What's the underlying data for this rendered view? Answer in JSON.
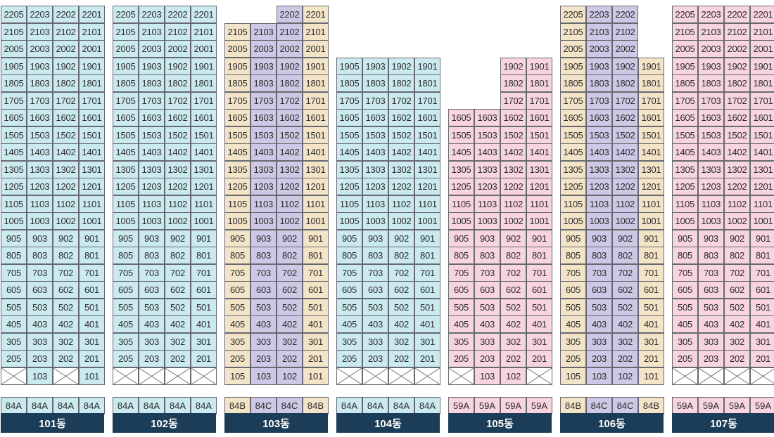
{
  "colors": {
    "84A": "#cbeaf0",
    "84B": "#f3e4c8",
    "84C": "#cec8e6",
    "59A": "#f7d4df",
    "label_bg": "#1b3d57",
    "border": "#666a70"
  },
  "buildings": [
    {
      "name": "101동",
      "types": [
        "84A",
        "84A",
        "84A",
        "84A"
      ],
      "columns": [
        {
          "top": 22,
          "lines": [
            "05",
            "03",
            "02",
            "01"
          ]
        }
      ],
      "ground": [
        "X",
        "103",
        "X",
        "101"
      ]
    },
    {
      "name": "102동",
      "types": [
        "84A",
        "84A",
        "84A",
        "84A"
      ],
      "columns": [
        {
          "top": 22,
          "lines": [
            "05",
            "03",
            "02",
            "01"
          ]
        }
      ],
      "ground": [
        "X",
        "X",
        "X",
        "X"
      ]
    },
    {
      "name": "103동",
      "types": [
        "84B",
        "84C",
        "84C",
        "84B"
      ],
      "colTops": [
        21,
        21,
        22,
        22
      ],
      "lines": [
        "05",
        "03",
        "02",
        "01"
      ],
      "ground": [
        "105",
        "103",
        "102",
        "101"
      ]
    },
    {
      "name": "104동",
      "types": [
        "84A",
        "84A",
        "84A",
        "84A"
      ],
      "colTops": [
        19,
        19,
        19,
        19
      ],
      "lines": [
        "05",
        "03",
        "02",
        "01"
      ],
      "ground": [
        "X",
        "X",
        "X",
        "X"
      ]
    },
    {
      "name": "105동",
      "types": [
        "59A",
        "59A",
        "59A",
        "59A"
      ],
      "colTops": [
        16,
        16,
        19,
        19
      ],
      "lines": [
        "05",
        "03",
        "02",
        "01"
      ],
      "ground": [
        "X",
        "103",
        "102",
        "X"
      ]
    },
    {
      "name": "106동",
      "types": [
        "84B",
        "84C",
        "84C",
        "84B"
      ],
      "colTops": [
        22,
        22,
        22,
        19
      ],
      "lines": [
        "05",
        "03",
        "02",
        "01"
      ],
      "ground": [
        "105",
        "103",
        "102",
        "101"
      ]
    },
    {
      "name": "107동",
      "types": [
        "59A",
        "59A",
        "59A",
        "59A"
      ],
      "colTops": [
        22,
        22,
        22,
        22
      ],
      "lines": [
        "05",
        "03",
        "02",
        "01"
      ],
      "ground": [
        "X",
        "X",
        "X",
        "X"
      ]
    }
  ]
}
